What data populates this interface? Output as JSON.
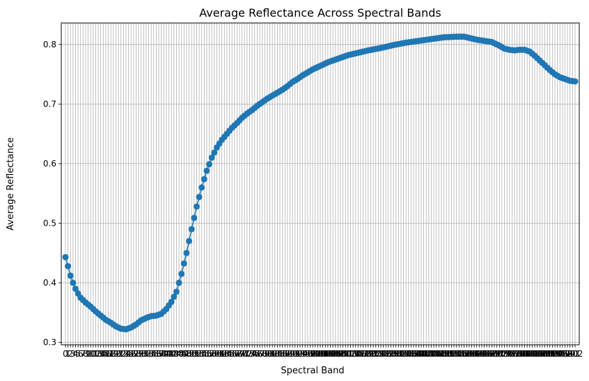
{
  "chart_data": {
    "type": "line",
    "title": "Average Reflectance Across Spectral Bands",
    "xlabel": "Spectral Band",
    "ylabel": "Average Reflectance",
    "xlim": [
      -1.65,
      203.65
    ],
    "ylim": [
      0.296,
      0.836
    ],
    "yticks": [
      0.3,
      0.4,
      0.5,
      0.6,
      0.7,
      0.8
    ],
    "ytick_labels": [
      "0.3",
      "0.4",
      "0.5",
      "0.6",
      "0.7",
      "0.8"
    ],
    "grid": true,
    "marker": "circle",
    "color": "#1f77b4",
    "grid_color": "#b0b0b0",
    "control_points": [
      [
        0,
        0.443
      ],
      [
        1,
        0.428
      ],
      [
        2,
        0.412
      ],
      [
        3,
        0.4
      ],
      [
        4,
        0.39
      ],
      [
        5,
        0.382
      ],
      [
        6,
        0.375
      ],
      [
        8,
        0.367
      ],
      [
        10,
        0.36
      ],
      [
        12,
        0.352
      ],
      [
        14,
        0.345
      ],
      [
        16,
        0.338
      ],
      [
        18,
        0.333
      ],
      [
        20,
        0.327
      ],
      [
        22,
        0.323
      ],
      [
        24,
        0.322
      ],
      [
        26,
        0.325
      ],
      [
        28,
        0.33
      ],
      [
        30,
        0.337
      ],
      [
        32,
        0.341
      ],
      [
        34,
        0.344
      ],
      [
        36,
        0.345
      ],
      [
        38,
        0.348
      ],
      [
        40,
        0.356
      ],
      [
        42,
        0.368
      ],
      [
        44,
        0.385
      ],
      [
        46,
        0.415
      ],
      [
        48,
        0.45
      ],
      [
        50,
        0.49
      ],
      [
        52,
        0.528
      ],
      [
        54,
        0.56
      ],
      [
        56,
        0.588
      ],
      [
        58,
        0.61
      ],
      [
        60,
        0.627
      ],
      [
        62,
        0.64
      ],
      [
        64,
        0.65
      ],
      [
        66,
        0.66
      ],
      [
        68,
        0.668
      ],
      [
        70,
        0.677
      ],
      [
        72,
        0.684
      ],
      [
        74,
        0.69
      ],
      [
        76,
        0.697
      ],
      [
        78,
        0.703
      ],
      [
        80,
        0.709
      ],
      [
        82,
        0.714
      ],
      [
        84,
        0.719
      ],
      [
        86,
        0.724
      ],
      [
        88,
        0.73
      ],
      [
        90,
        0.737
      ],
      [
        92,
        0.742
      ],
      [
        94,
        0.748
      ],
      [
        96,
        0.753
      ],
      [
        98,
        0.758
      ],
      [
        100,
        0.762
      ],
      [
        104,
        0.77
      ],
      [
        108,
        0.776
      ],
      [
        112,
        0.782
      ],
      [
        116,
        0.786
      ],
      [
        120,
        0.79
      ],
      [
        125,
        0.794
      ],
      [
        130,
        0.799
      ],
      [
        135,
        0.803
      ],
      [
        140,
        0.806
      ],
      [
        145,
        0.809
      ],
      [
        150,
        0.812
      ],
      [
        155,
        0.813
      ],
      [
        158,
        0.813
      ],
      [
        160,
        0.811
      ],
      [
        163,
        0.808
      ],
      [
        166,
        0.806
      ],
      [
        169,
        0.804
      ],
      [
        172,
        0.798
      ],
      [
        174,
        0.793
      ],
      [
        176,
        0.791
      ],
      [
        178,
        0.79
      ],
      [
        180,
        0.791
      ],
      [
        182,
        0.791
      ],
      [
        184,
        0.788
      ],
      [
        186,
        0.781
      ],
      [
        188,
        0.773
      ],
      [
        190,
        0.765
      ],
      [
        192,
        0.757
      ],
      [
        194,
        0.75
      ],
      [
        196,
        0.745
      ],
      [
        198,
        0.742
      ],
      [
        200,
        0.739
      ],
      [
        202,
        0.738
      ]
    ]
  }
}
